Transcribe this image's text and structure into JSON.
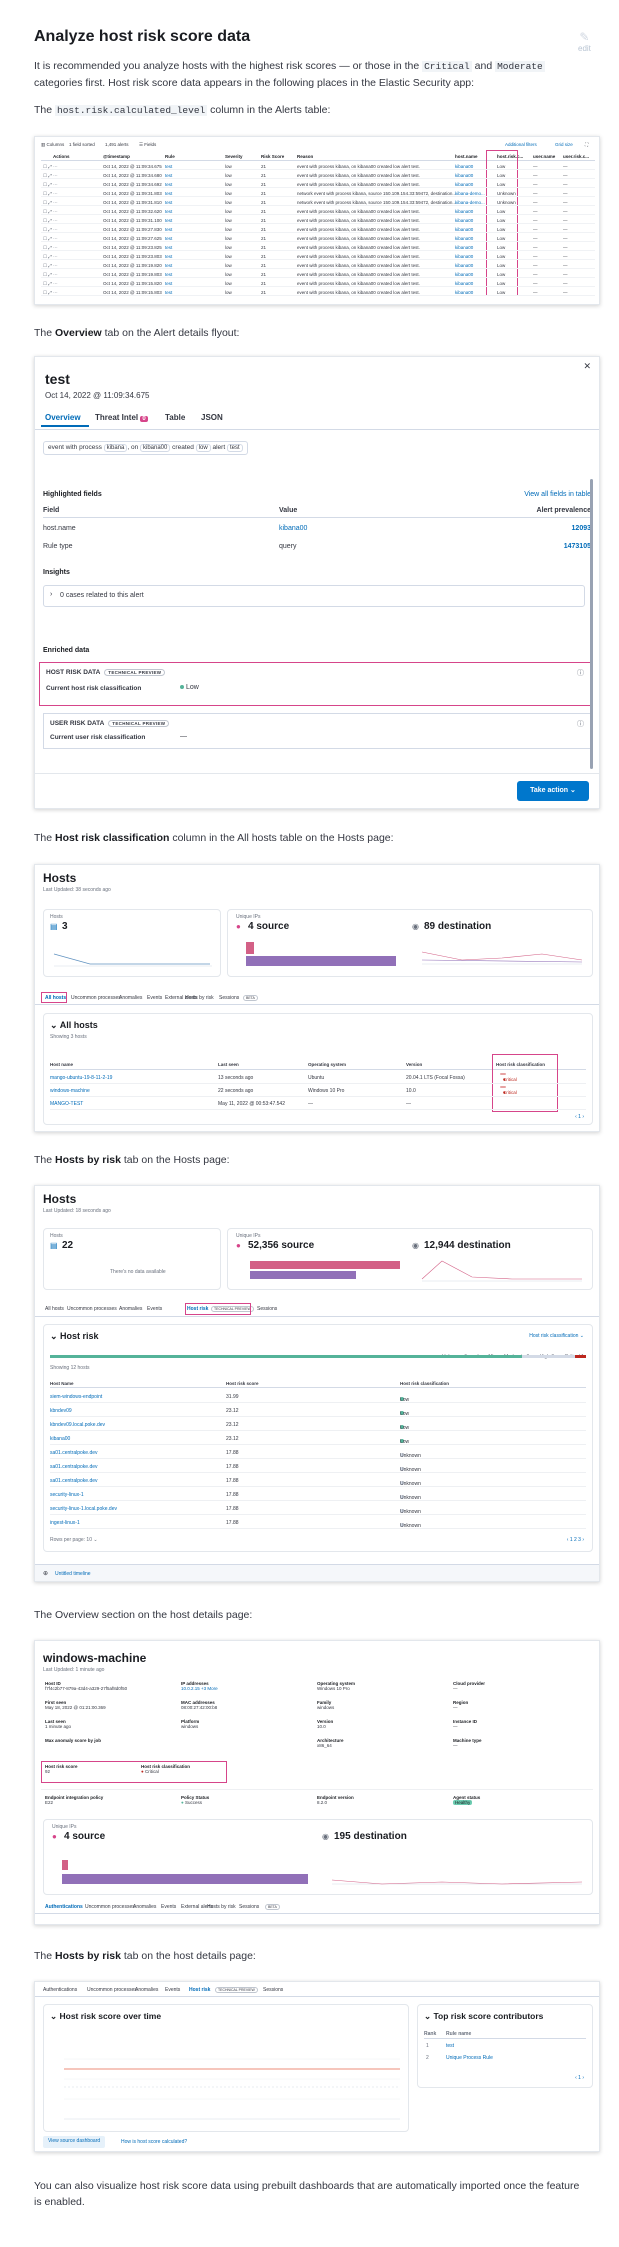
{
  "header": {
    "title": "Analyze host risk score data",
    "edit_label": "edit"
  },
  "intro": {
    "p1_a": "It is recommended you analyze hosts with the highest risk scores — or those in the",
    "code_critical": "Critical",
    "p1_and": "and",
    "code_moderate": "Moderate",
    "p1_b": "categories first. Host risk score data appears in the following places in the Elastic Security app:"
  },
  "captions": {
    "c1_pre": "The",
    "c1_code": "host.risk.calculated_level",
    "c1_post": "column in the Alerts table:",
    "c2_pre": "The",
    "c2_bold": "Overview",
    "c2_post": "tab on the Alert details flyout:",
    "c3_pre": "The",
    "c3_bold": "Host risk classification",
    "c3_post": "column in the All hosts table on the Hosts page:",
    "c4_pre": "The",
    "c4_bold": "Hosts by risk",
    "c4_post": "tab on the Hosts page:",
    "c5": "The Overview section on the host details page:",
    "c6_pre": "The",
    "c6_bold": "Hosts by risk",
    "c6_post": "tab on the host details page:",
    "outro": "You can also visualize host risk score data using prebuilt dashboards that are automatically imported once the feature is enabled."
  },
  "alerts_table": {
    "toolbar": {
      "columns": "Columns",
      "sort": "1 field sorted",
      "count": "1,491 alerts",
      "fields": "Fields",
      "additional_filters": "Additional filters",
      "grid_size": "Grid size"
    },
    "headers": [
      "Actions",
      "@timestamp",
      "Rule",
      "Severity",
      "Risk Score",
      "Reason",
      "host.name",
      "host.risk.c...",
      "user.name",
      "user.risk.c..."
    ],
    "rows": [
      {
        "ts": "Oct 14, 2022 @ 11:09:34.675",
        "rule": "test",
        "sev": "low",
        "score": "21",
        "reason": "event with process kibana, on kibana00 created low alert test.",
        "host": "kibana00",
        "risk": "Low",
        "user": "—",
        "urisk": "—"
      },
      {
        "ts": "Oct 14, 2022 @ 11:09:34.680",
        "rule": "test",
        "sev": "low",
        "score": "21",
        "reason": "event with process kibana, on kibana00 created low alert test.",
        "host": "kibana00",
        "risk": "Low",
        "user": "—",
        "urisk": "—"
      },
      {
        "ts": "Oct 14, 2022 @ 11:09:34.692",
        "rule": "test",
        "sev": "low",
        "score": "21",
        "reason": "event with process kibana, on kibana00 created low alert test.",
        "host": "kibana00",
        "risk": "Low",
        "user": "—",
        "urisk": "—"
      },
      {
        "ts": "Oct 14, 2022 @ 11:09:31.803",
        "rule": "test",
        "sev": "low",
        "score": "21",
        "reason": "network event with process kibana, source 150.109.154.33:59472, destination...",
        "host": "kibana-demo...",
        "risk": "Unknown",
        "user": "—",
        "urisk": "—"
      },
      {
        "ts": "Oct 14, 2022 @ 11:09:31.810",
        "rule": "test",
        "sev": "low",
        "score": "21",
        "reason": "network event with process kibana, source 150.109.154.33:59472, destination...",
        "host": "kibana-demo...",
        "risk": "Unknown",
        "user": "—",
        "urisk": "—"
      },
      {
        "ts": "Oct 14, 2022 @ 11:09:32.620",
        "rule": "test",
        "sev": "low",
        "score": "21",
        "reason": "event with process kibana, on kibana00 created low alert test.",
        "host": "kibana00",
        "risk": "Low",
        "user": "—",
        "urisk": "—"
      },
      {
        "ts": "Oct 14, 2022 @ 11:09:31.100",
        "rule": "test",
        "sev": "low",
        "score": "21",
        "reason": "event with process kibana, on kibana00 created low alert test.",
        "host": "kibana00",
        "risk": "Low",
        "user": "—",
        "urisk": "—"
      },
      {
        "ts": "Oct 14, 2022 @ 11:09:27.830",
        "rule": "test",
        "sev": "low",
        "score": "21",
        "reason": "event with process kibana, on kibana00 created low alert test.",
        "host": "kibana00",
        "risk": "Low",
        "user": "—",
        "urisk": "—"
      },
      {
        "ts": "Oct 14, 2022 @ 11:09:27.625",
        "rule": "test",
        "sev": "low",
        "score": "21",
        "reason": "event with process kibana, on kibana00 created low alert test.",
        "host": "kibana00",
        "risk": "Low",
        "user": "—",
        "urisk": "—"
      },
      {
        "ts": "Oct 14, 2022 @ 11:09:23.825",
        "rule": "test",
        "sev": "low",
        "score": "21",
        "reason": "event with process kibana, on kibana00 created low alert test.",
        "host": "kibana00",
        "risk": "Low",
        "user": "—",
        "urisk": "—"
      },
      {
        "ts": "Oct 14, 2022 @ 11:09:23.803",
        "rule": "test",
        "sev": "low",
        "score": "21",
        "reason": "event with process kibana, on kibana00 created low alert test.",
        "host": "kibana00",
        "risk": "Low",
        "user": "—",
        "urisk": "—"
      },
      {
        "ts": "Oct 14, 2022 @ 11:09:19.820",
        "rule": "test",
        "sev": "low",
        "score": "21",
        "reason": "event with process kibana, on kibana00 created low alert test.",
        "host": "kibana00",
        "risk": "Low",
        "user": "—",
        "urisk": "—"
      },
      {
        "ts": "Oct 14, 2022 @ 11:09:19.803",
        "rule": "test",
        "sev": "low",
        "score": "21",
        "reason": "event with process kibana, on kibana00 created low alert test.",
        "host": "kibana00",
        "risk": "Low",
        "user": "—",
        "urisk": "—"
      },
      {
        "ts": "Oct 14, 2022 @ 11:09:15.820",
        "rule": "test",
        "sev": "low",
        "score": "21",
        "reason": "event with process kibana, on kibana00 created low alert test.",
        "host": "kibana00",
        "risk": "Low",
        "user": "—",
        "urisk": "—"
      },
      {
        "ts": "Oct 14, 2022 @ 11:09:15.803",
        "rule": "test",
        "sev": "low",
        "score": "21",
        "reason": "event with process kibana, on kibana00 created low alert test.",
        "host": "kibana00",
        "risk": "Low",
        "user": "—",
        "urisk": "—"
      }
    ]
  },
  "flyout": {
    "title": "test",
    "timestamp": "Oct 14, 2022 @ 11:09:34.675",
    "tabs": {
      "overview": "Overview",
      "threat": "Threat Intel",
      "threat_count": "0",
      "table": "Table",
      "json": "JSON"
    },
    "reason": {
      "a": "event with process",
      "proc": "kibana",
      "b": ", on",
      "host": "kibana00",
      "c": "created",
      "sev": "low",
      "d": "alert",
      "rule": "test"
    },
    "highlighted": {
      "title": "Highlighted fields",
      "view_all": "View all fields in table",
      "col_field": "Field",
      "col_value": "Value",
      "col_prev": "Alert prevalence",
      "rows": [
        {
          "field": "host.name",
          "value": "kibana00",
          "prev": "12093"
        },
        {
          "field": "Rule type",
          "value": "query",
          "prev": "1473105"
        }
      ]
    },
    "insights": {
      "title": "Insights",
      "cases": "0 cases related to this alert"
    },
    "enriched": {
      "title": "Enriched data",
      "host_label": "HOST RISK DATA",
      "host_badge": "TECHNICAL PREVIEW",
      "host_field": "Current host risk classification",
      "host_value": "Low",
      "user_label": "USER RISK DATA",
      "user_badge": "TECHNICAL PREVIEW",
      "user_field": "Current user risk classification",
      "user_value": "—"
    },
    "take_action": "Take action"
  },
  "hosts_page": {
    "title": "Hosts",
    "updated": "Last Updated: 38 seconds ago",
    "hosts_label": "Hosts",
    "hosts_count": "3",
    "ips_label": "Unique IPs",
    "source": "4 source",
    "destination": "89 destination",
    "subtabs": [
      "All hosts",
      "Uncommon processes",
      "Anomalies",
      "Events",
      "External alerts",
      "Hosts by risk",
      "Sessions",
      "BETA"
    ],
    "table_title": "All hosts",
    "table_count": "Showing 3 hosts",
    "headers": [
      "Host name",
      "Last seen",
      "Operating system",
      "Version",
      "Host risk classification"
    ],
    "rows": [
      {
        "name": "mango-ubuntu-19-8-11-2-19",
        "seen": "13 seconds ago",
        "os": "Ubuntu",
        "ver": "20.04.1 LTS (Focal Fossa)",
        "risk": "Critical"
      },
      {
        "name": "windows-machine",
        "seen": "22 seconds ago",
        "os": "Windows 10 Pro",
        "ver": "10.0",
        "risk": "Critical"
      },
      {
        "name": "MANGO-TEST",
        "seen": "May 11, 2022 @ 00:53:47.542",
        "os": "—",
        "ver": "—",
        "risk": ""
      }
    ],
    "pager": "1"
  },
  "hosts_risk_page": {
    "title": "Hosts",
    "updated": "Last Updated: 18 seconds ago",
    "hosts_label": "Hosts",
    "hosts_count": "22",
    "no_data": "There's no data available",
    "ips_label": "Unique IPs",
    "source": "52,356 source",
    "destination": "12,944 destination",
    "subtabs": [
      "All hosts",
      "Uncommon processes",
      "Anomalies",
      "Events",
      "Host risk",
      "TECHNICAL PREVIEW",
      "Sessions"
    ],
    "table_title": "Host risk",
    "classification_filter": "Host risk classification",
    "legend": [
      "Unknown 6",
      "Low 15",
      "Moderate 0",
      "High 0",
      "Critical 1"
    ],
    "table_count": "Showing 12 hosts",
    "headers": [
      "Host Name",
      "Host risk score",
      "Host risk classification"
    ],
    "rows": [
      {
        "name": "siem-windows-endpoint",
        "score": "31.99",
        "risk": "Low"
      },
      {
        "name": "kbndev09",
        "score": "23.12",
        "risk": "Low"
      },
      {
        "name": "kbndev09.local.poke.dev",
        "score": "23.12",
        "risk": "Low"
      },
      {
        "name": "kibana00",
        "score": "23.12",
        "risk": "Low"
      },
      {
        "name": "sa01.centralpoke.dev",
        "score": "17.88",
        "risk": "Unknown"
      },
      {
        "name": "sa01.centralpoke.dev",
        "score": "17.88",
        "risk": "Unknown"
      },
      {
        "name": "sa01.centralpoke.dev",
        "score": "17.88",
        "risk": "Unknown"
      },
      {
        "name": "security-linux-1",
        "score": "17.88",
        "risk": "Unknown"
      },
      {
        "name": "security-linux-1.local.poke.dev",
        "score": "17.88",
        "risk": "Unknown"
      },
      {
        "name": "ingest-linux-1",
        "score": "17.88",
        "risk": "Unknown"
      }
    ],
    "rows_per_page": "Rows per page: 10",
    "pager": "1 2 3",
    "timeline": "Untitled timeline"
  },
  "host_details": {
    "title": "windows-machine",
    "updated": "Last Updated: 1 minute ago",
    "fields": [
      {
        "label": "Host ID",
        "value": "f7f4c2b77-879a-43d4-a329-27f5af8d0f50"
      },
      {
        "label": "IP addresses",
        "value": "10.0.2.15 +3 More"
      },
      {
        "label": "Operating system",
        "value": "Windows 10 Pro"
      },
      {
        "label": "Cloud provider",
        "value": "—"
      },
      {
        "label": "First seen",
        "value": "May 18, 2022 @ 01:21:00.369"
      },
      {
        "label": "MAC addresses",
        "value": "08:00:27:42:00:b8"
      },
      {
        "label": "Family",
        "value": "windows"
      },
      {
        "label": "Region",
        "value": "—"
      },
      {
        "label": "Last seen",
        "value": "1 minute ago"
      },
      {
        "label": "Platform",
        "value": "windows"
      },
      {
        "label": "Version",
        "value": "10.0"
      },
      {
        "label": "Instance ID",
        "value": "—"
      },
      {
        "label": "Max anomaly score by job",
        "value": ""
      },
      {
        "label": "",
        "value": ""
      },
      {
        "label": "Architecture",
        "value": "x86_64"
      },
      {
        "label": "Machine type",
        "value": "—"
      }
    ],
    "risk_score_label": "Host risk score",
    "risk_score": "92",
    "risk_class_label": "Host risk classification",
    "risk_class": "Critical",
    "policy_label": "Endpoint integration policy",
    "policy": "E22",
    "policy_status_label": "Policy Status",
    "policy_status": "Success",
    "endpoint_ver_label": "Endpoint version",
    "endpoint_ver": "8.2.0",
    "agent_status_label": "Agent status",
    "agent_status": "Healthy",
    "ips_label": "Unique IPs",
    "source": "4 source",
    "destination": "195 destination",
    "subtabs": [
      "Authentications",
      "Uncommon processes",
      "Anomalies",
      "Events",
      "External alerts",
      "Hosts by risk",
      "Sessions",
      "BETA"
    ]
  },
  "host_risk_tab": {
    "subtabs": [
      "Authentications",
      "Uncommon processes",
      "Anomalies",
      "Events",
      "Host risk",
      "TECHNICAL PREVIEW",
      "Sessions"
    ],
    "over_time": "Host risk score over time",
    "contributors": "Top risk score contributors",
    "col_rank": "Rank",
    "col_rule": "Rule name",
    "rules": [
      {
        "rank": "1",
        "name": "test"
      },
      {
        "rank": "2",
        "name": "Unique Process Rule"
      }
    ],
    "dashboard_btn": "View source dashboard",
    "how_link": "How is host score calculated?"
  },
  "colors": {
    "brand": "#006bb8",
    "pink": "#d6458a",
    "critical": "#bd271e",
    "low": "#54b399",
    "bar_purple": "#9170b8",
    "bar_pink": "#d36086"
  }
}
